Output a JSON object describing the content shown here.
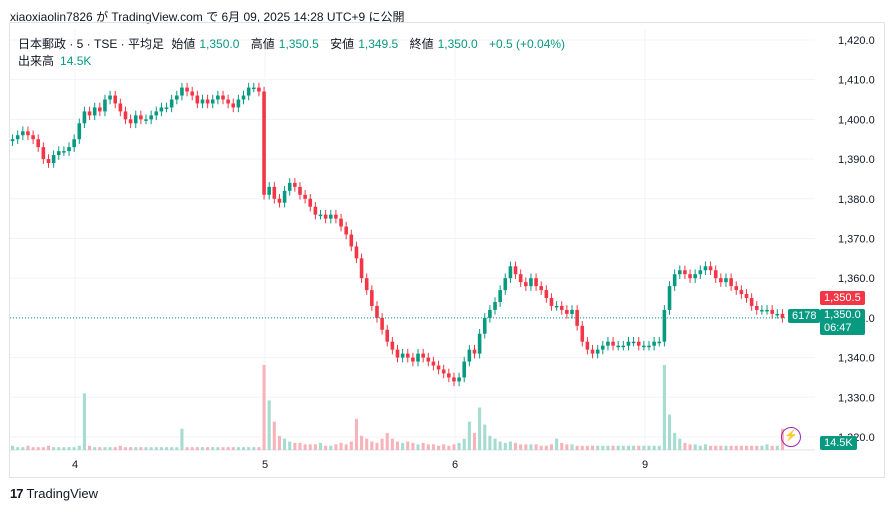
{
  "header": {
    "author": "xiaoxiaolin7826",
    "published_text": "が TradingView.com で 6月 09, 2025 14:28 UTC+9 に公開"
  },
  "legend": {
    "symbol": "日本郵政 · 5 · TSE · 平均足",
    "open_label": "始値",
    "open_value": "1,350.0",
    "high_label": "高値",
    "high_value": "1,350.5",
    "low_label": "安値",
    "low_value": "1,349.5",
    "close_label": "終値",
    "close_value": "1,350.0",
    "change": "+0.5 (+0.04%)",
    "volume_label": "出来高",
    "volume_value": "14.5K"
  },
  "badges": {
    "high_price": "1,350.5",
    "symbol_code": "6178",
    "last_price": "1,350.0",
    "countdown": "06:47",
    "volume": "14.5K"
  },
  "footer": {
    "brand": "TradingView",
    "logo": "tv-logo-icon"
  },
  "colors": {
    "up": "#089981",
    "down": "#f23645",
    "text": "#131722",
    "grid": "#f0f3fa"
  },
  "chart_data": {
    "type": "candlestick",
    "y_ticks": [
      "1,420.0",
      "1,410.0",
      "1,400.0",
      "1,390.0",
      "1,380.0",
      "1,370.0",
      "1,360.0",
      "1,350.0",
      "1,340.0",
      "1,330.0",
      "1,320.0"
    ],
    "ylim": [
      1320,
      1422
    ],
    "x_ticks": [
      "4",
      "5",
      "6",
      "9"
    ],
    "days": [
      "4",
      "5",
      "6",
      "9"
    ],
    "last_price": 1350.0,
    "series_close": [
      1395,
      1396,
      1397,
      1396,
      1395,
      1393,
      1390,
      1389,
      1391,
      1392,
      1392,
      1393,
      1395,
      1399,
      1402,
      1401,
      1403,
      1402,
      1405,
      1406,
      1404,
      1402,
      1400,
      1399,
      1401,
      1400,
      1400,
      1401,
      1402,
      1403,
      1403,
      1405,
      1406,
      1408,
      1407,
      1406,
      1404,
      1405,
      1404,
      1405,
      1406,
      1405,
      1404,
      1403,
      1405,
      1406,
      1408,
      1408,
      1407,
      1381,
      1383,
      1380,
      1379,
      1382,
      1384,
      1383,
      1381,
      1380,
      1378,
      1376,
      1376,
      1375,
      1376,
      1375,
      1373,
      1371,
      1368,
      1365,
      1360,
      1357,
      1353,
      1350,
      1347,
      1344,
      1342,
      1340,
      1341,
      1340,
      1339,
      1341,
      1340,
      1339,
      1338,
      1337,
      1336,
      1335,
      1334,
      1335,
      1339,
      1342,
      1341,
      1346,
      1350,
      1352,
      1354,
      1357,
      1360,
      1363,
      1361,
      1359,
      1358,
      1360,
      1358,
      1357,
      1355,
      1353,
      1353,
      1352,
      1351,
      1352,
      1348,
      1344,
      1342,
      1341,
      1342,
      1343,
      1344,
      1343,
      1343,
      1343,
      1344,
      1344,
      1343,
      1343,
      1343,
      1344,
      1344,
      1352,
      1358,
      1361,
      1362,
      1361,
      1360,
      1361,
      1362,
      1363,
      1362,
      1360,
      1359,
      1360,
      1358,
      1357,
      1356,
      1355,
      1353,
      1352,
      1352,
      1352,
      1351,
      1351,
      1350
    ],
    "volume_k": [
      3,
      2,
      2,
      3,
      2,
      2,
      2,
      3,
      2,
      2,
      2,
      2,
      2,
      3,
      40,
      3,
      2,
      2,
      2,
      2,
      2,
      3,
      2,
      2,
      2,
      2,
      2,
      2,
      2,
      2,
      2,
      2,
      2,
      15,
      2,
      2,
      2,
      2,
      2,
      2,
      2,
      2,
      2,
      2,
      2,
      2,
      2,
      2,
      2,
      60,
      35,
      20,
      10,
      8,
      6,
      5,
      5,
      4,
      4,
      4,
      5,
      3,
      3,
      4,
      5,
      4,
      6,
      22,
      10,
      8,
      6,
      5,
      8,
      12,
      8,
      6,
      5,
      6,
      5,
      4,
      5,
      4,
      4,
      3,
      4,
      3,
      4,
      5,
      8,
      20,
      12,
      30,
      18,
      10,
      8,
      6,
      5,
      6,
      5,
      4,
      4,
      4,
      4,
      3,
      3,
      4,
      8,
      5,
      4,
      4,
      3,
      3,
      3,
      3,
      3,
      3,
      3,
      3,
      3,
      3,
      3,
      3,
      3,
      3,
      3,
      3,
      3,
      60,
      25,
      12,
      8,
      5,
      4,
      4,
      3,
      4,
      3,
      3,
      3,
      3,
      3,
      3,
      3,
      3,
      3,
      3,
      3,
      4,
      3,
      3,
      15
    ]
  }
}
